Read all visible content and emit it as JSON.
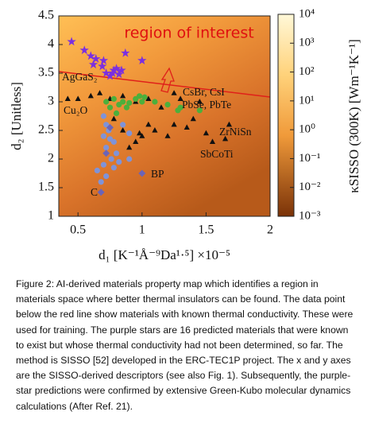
{
  "chart_data": {
    "type": "scatter",
    "title": "region of interest",
    "x_label": "d₁ [K⁻¹Å⁻⁹Da¹·⁵] ×10⁻⁵",
    "y_label": "d₂ [Unitless]",
    "colorbar_label": "κSISSO (300K) [Wm⁻¹K⁻¹]",
    "xlim": [
      0.35,
      2.0
    ],
    "xticks": [
      0.5,
      1.0,
      1.5,
      2.0
    ],
    "ylim": [
      1.0,
      4.5
    ],
    "yticks": [
      1.0,
      1.5,
      2.0,
      2.5,
      3.0,
      3.5,
      4.0,
      4.5
    ],
    "colorbar_lim": [
      0.001,
      10000
    ],
    "colorbar_log": true,
    "colorbar_ticks": [
      {
        "value": 10000,
        "label": "10⁴"
      },
      {
        "value": 1000,
        "label": "10³"
      },
      {
        "value": 100,
        "label": "10²"
      },
      {
        "value": 10,
        "label": "10¹"
      },
      {
        "value": 1,
        "label": "10⁰"
      },
      {
        "value": 0.1,
        "label": "10⁻¹"
      },
      {
        "value": 0.01,
        "label": "10⁻²"
      },
      {
        "value": 0.001,
        "label": "10⁻³"
      }
    ],
    "series": [
      {
        "marker": "star",
        "color": "#7b2fe0",
        "x": [
          0.45,
          0.55,
          0.64,
          0.62,
          0.7,
          0.78,
          0.8,
          0.72,
          0.75,
          0.87,
          1.0,
          0.77,
          0.69,
          0.6,
          0.82,
          0.84
        ],
        "y": [
          4.05,
          3.9,
          3.75,
          3.65,
          3.72,
          3.55,
          3.58,
          3.5,
          3.45,
          3.85,
          3.72,
          3.5,
          3.62,
          3.8,
          3.48,
          3.55
        ]
      },
      {
        "marker": "triangle",
        "color": "#111111",
        "x": [
          0.42,
          0.5,
          0.6,
          0.67,
          0.75,
          0.85,
          0.95,
          1.05,
          1.15,
          1.25,
          1.3,
          1.4,
          1.35,
          1.5,
          1.55,
          1.65,
          1.68,
          1.25,
          1.1,
          1.0,
          0.95,
          0.9,
          1.05,
          0.85,
          0.78,
          1.45,
          1.2,
          0.98
        ],
        "y": [
          3.05,
          3.05,
          3.1,
          3.15,
          3.05,
          3.1,
          3.0,
          3.05,
          2.9,
          3.15,
          3.05,
          2.7,
          2.55,
          2.45,
          2.3,
          2.35,
          2.6,
          2.6,
          2.5,
          2.4,
          2.3,
          2.2,
          2.6,
          2.5,
          2.7,
          3.0,
          2.4,
          2.45
        ]
      },
      {
        "marker": "circle",
        "color": "#4caf3c",
        "x": [
          0.72,
          0.78,
          0.82,
          0.85,
          0.9,
          0.95,
          0.98,
          1.0,
          1.02,
          1.1,
          1.2,
          1.28,
          1.3,
          1.45,
          0.75,
          0.8,
          0.88
        ],
        "y": [
          3.0,
          3.05,
          2.95,
          3.0,
          2.98,
          3.05,
          3.1,
          3.0,
          3.08,
          3.0,
          2.95,
          2.85,
          2.9,
          2.85,
          2.9,
          2.8,
          2.9
        ]
      },
      {
        "marker": "circle",
        "color": "#7f93d8",
        "x": [
          0.7,
          0.72,
          0.74,
          0.7,
          0.75,
          0.72,
          0.78,
          0.8,
          0.76,
          0.7,
          0.78,
          0.82,
          0.68,
          0.72,
          0.9,
          0.65,
          0.85,
          0.9
        ],
        "y": [
          2.75,
          2.6,
          2.5,
          2.4,
          2.35,
          2.2,
          2.3,
          2.1,
          2.0,
          1.9,
          1.85,
          1.95,
          1.6,
          1.7,
          2.0,
          1.8,
          2.6,
          2.45
        ]
      },
      {
        "marker": "diamond",
        "color": "#6b64b8",
        "x": [
          0.68,
          1.0,
          0.72,
          0.75
        ],
        "y": [
          1.42,
          1.75,
          2.1,
          2.55
        ]
      }
    ],
    "annotations": [
      "AgGaS₂",
      "Cu₂O",
      "CsBr, CsI",
      "PbSe, PbTe",
      "ZrNiSn",
      "SbCoTi",
      "BP",
      "C"
    ]
  },
  "caption": "Figure 2: AI-derived materials property map which identifies a region in materials space where better thermal insulators can be found. The data point below the red line show materials with known thermal conductivity. These were used for training. The purple stars are 16 predicted materials that were known to exist but whose thermal conductivity had not been determined, so far. The method is SISSO [52] developed in the ERC-TEC1P project. The x and y axes are the SISSO-derived descriptors (see also Fig. 1). Subsequently, the purple-star predictions were confirmed by extensive Green-Kubo molecular dynamics calculations (After Ref. 21)."
}
